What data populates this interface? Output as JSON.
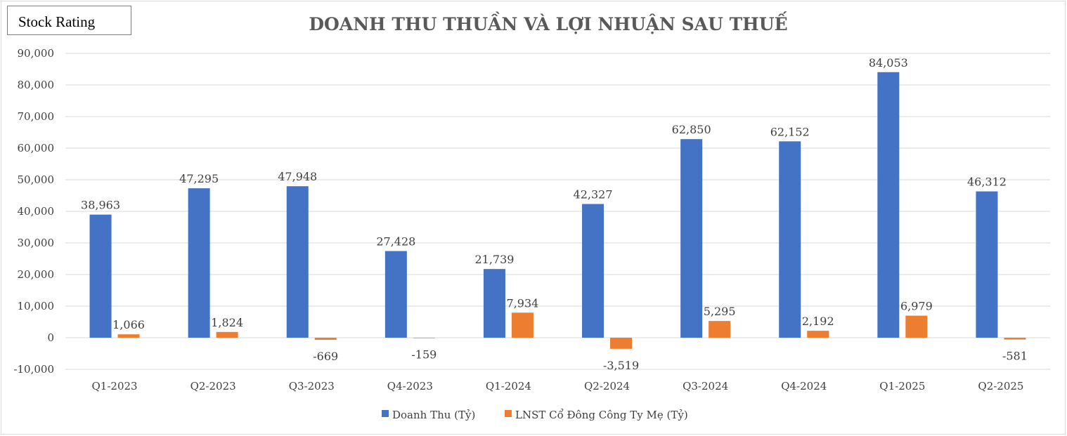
{
  "badge": {
    "label": "Stock Rating"
  },
  "chart_data": {
    "type": "bar",
    "title": "DOANH THU THUẦN VÀ LỢI NHUẬN SAU THUẾ",
    "xlabel": "",
    "ylabel": "",
    "ylim": [
      -10000,
      90000
    ],
    "yticks": [
      -10000,
      0,
      10000,
      20000,
      30000,
      40000,
      50000,
      60000,
      70000,
      80000,
      90000
    ],
    "ytick_labels": [
      "-10,000",
      "0",
      "10,000",
      "20,000",
      "30,000",
      "40,000",
      "50,000",
      "60,000",
      "70,000",
      "80,000",
      "90,000"
    ],
    "grid": true,
    "legend_position": "bottom",
    "categories": [
      "Q1-2023",
      "Q2-2023",
      "Q3-2023",
      "Q4-2023",
      "Q1-2024",
      "Q2-2024",
      "Q3-2024",
      "Q4-2024",
      "Q1-2025",
      "Q2-2025"
    ],
    "series": [
      {
        "name": "Doanh Thu (Tỷ)",
        "color": "#4472c4",
        "values": [
          38963,
          47295,
          47948,
          27428,
          21739,
          42327,
          62850,
          62152,
          84053,
          46312
        ],
        "labels": [
          "38,963",
          "47,295",
          "47,948",
          "27,428",
          "21,739",
          "42,327",
          "62,850",
          "62,152",
          "84,053",
          "46,312"
        ]
      },
      {
        "name": "LNST Cổ Đông Công Ty Mẹ (Tỷ)",
        "color": "#ed7d31",
        "values": [
          1066,
          1824,
          -669,
          -159,
          7934,
          -3519,
          5295,
          2192,
          6979,
          -581
        ],
        "labels": [
          "1,066",
          "1,824",
          "-669",
          "-159",
          "7,934",
          "-3,519",
          "5,295",
          "2,192",
          "6,979",
          "-581"
        ]
      }
    ]
  }
}
